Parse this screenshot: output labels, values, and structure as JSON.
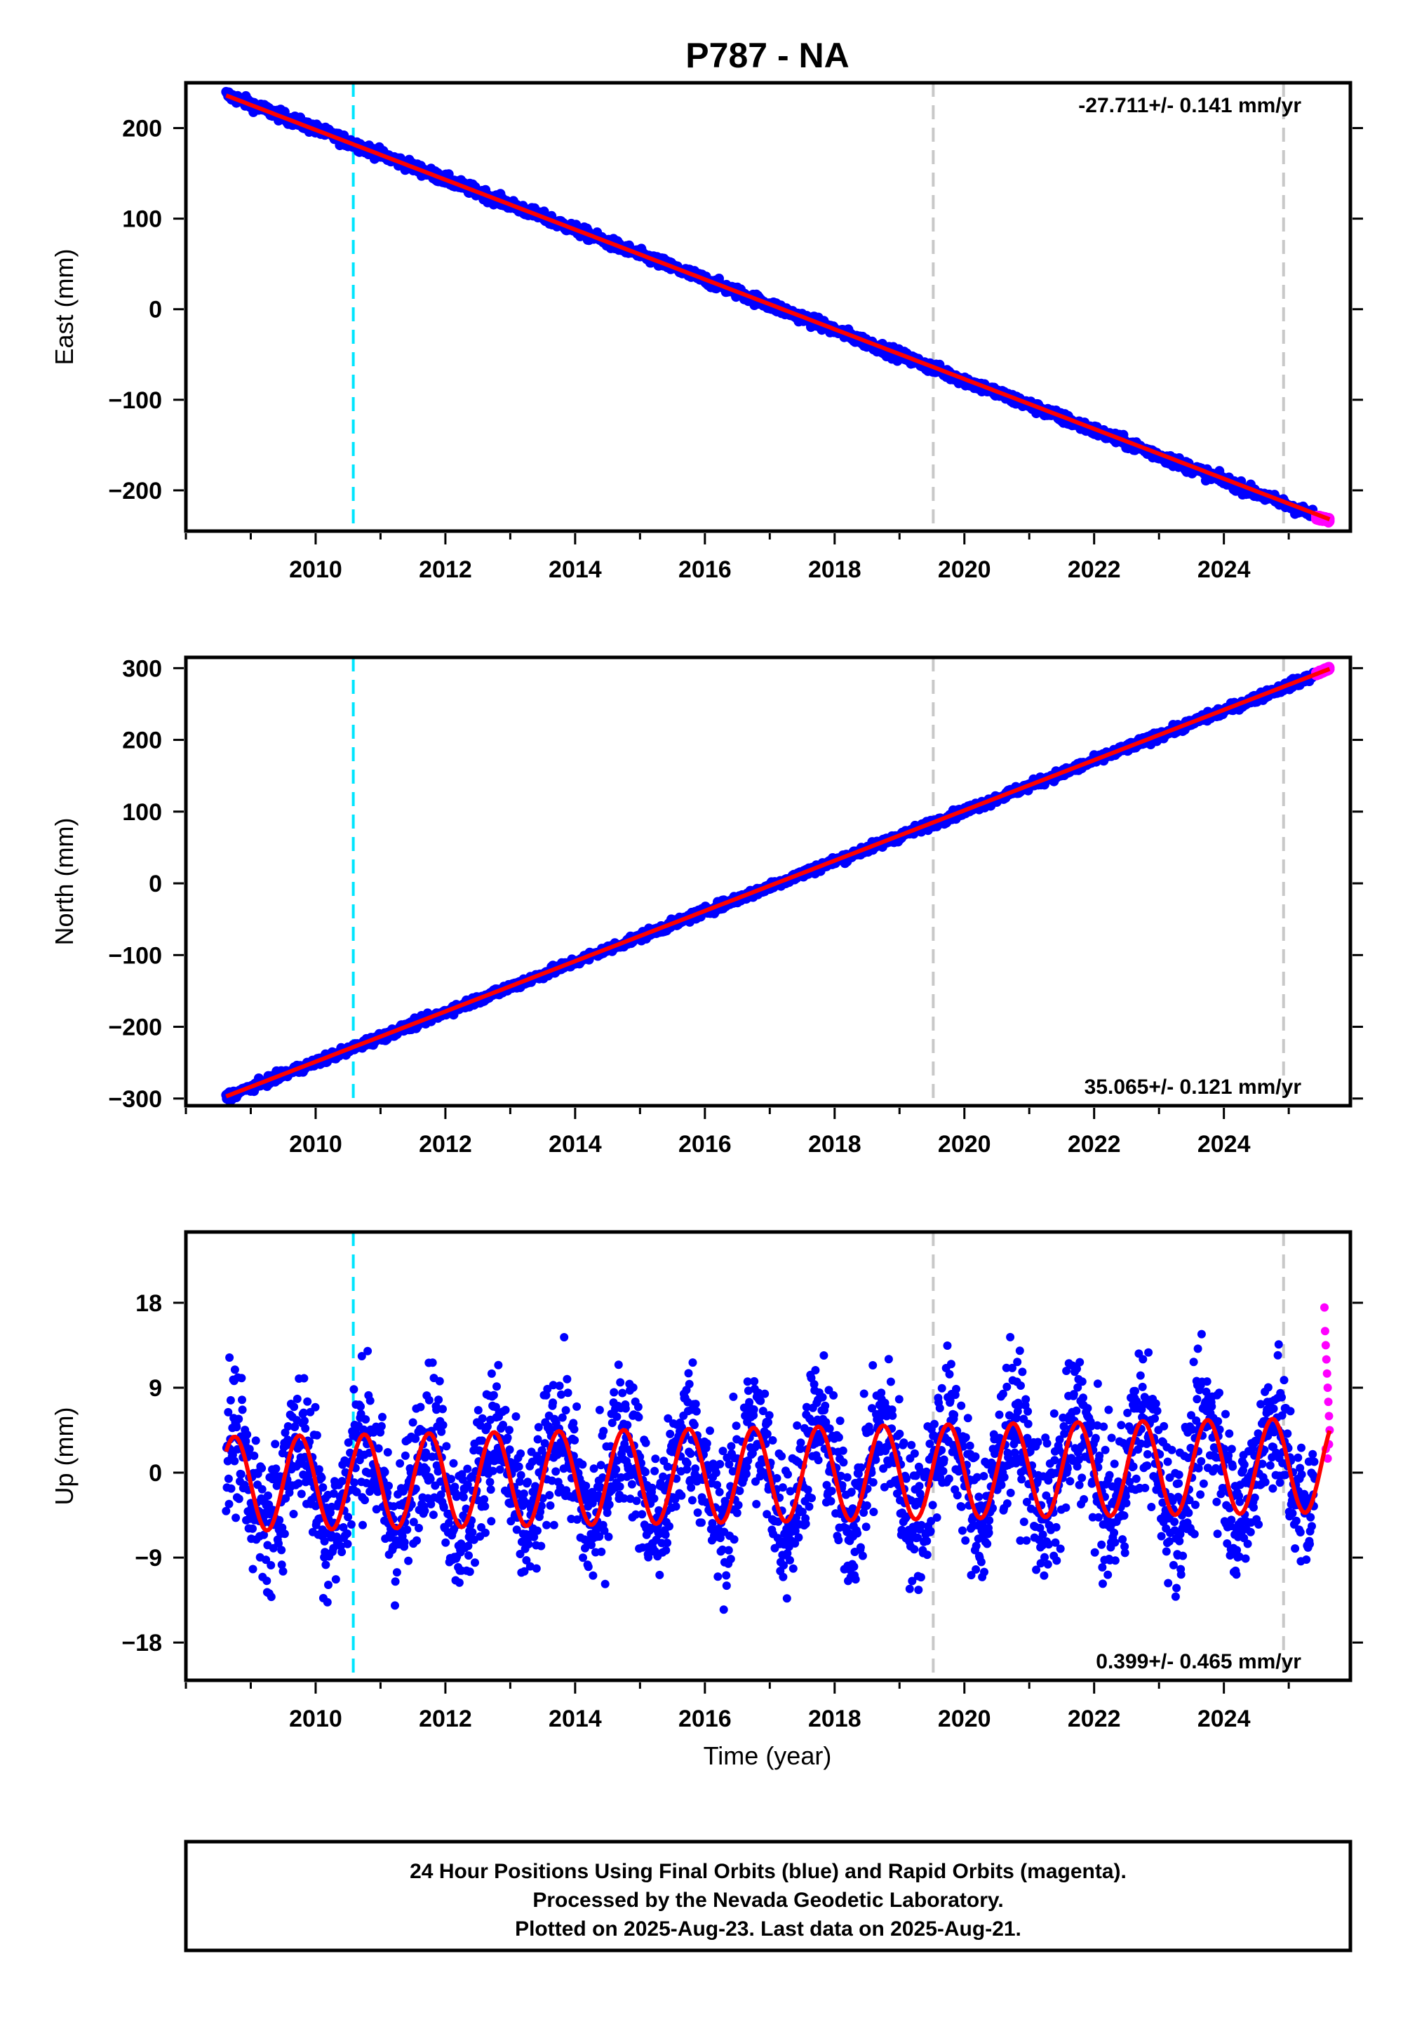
{
  "chart_data": [
    {
      "type": "scatter",
      "title": "P787 - NA",
      "ylabel": "East (mm)",
      "xlabel": "",
      "xlim": [
        2008.0,
        2025.95
      ],
      "ylim": [
        -245,
        250
      ],
      "x_ticks": [
        2010,
        2012,
        2014,
        2016,
        2018,
        2020,
        2022,
        2024
      ],
      "y_ticks": [
        -200,
        -100,
        0,
        100,
        200
      ],
      "y_tick_labels": [
        "−200",
        "−100",
        "0",
        "100",
        "200"
      ],
      "rate_label": "-27.711+/- 0.141 mm/yr",
      "grid": false,
      "series": [
        {
          "name": "Final Orbits (blue)",
          "color": "#0000ff",
          "x_start": 2008.62,
          "x_end": 2025.4,
          "y_start": 237,
          "y_end": -228,
          "scatter": 3
        },
        {
          "name": "Rapid Orbits (magenta)",
          "color": "#ff00ff",
          "x_start": 2025.42,
          "x_end": 2025.63,
          "y_start": -230,
          "y_end": -233,
          "scatter": 1
        },
        {
          "name": "Fit",
          "color": "#ff0000",
          "x_start": 2008.62,
          "x_end": 2025.63,
          "y_start": 236,
          "y_end": -232
        }
      ],
      "vlines": [
        {
          "x": 2010.58,
          "color": "#00e5ff"
        },
        {
          "x": 2019.52,
          "color": "#c8c8c8"
        },
        {
          "x": 2024.92,
          "color": "#c8c8c8"
        }
      ]
    },
    {
      "type": "scatter",
      "ylabel": "North (mm)",
      "xlabel": "",
      "xlim": [
        2008.0,
        2025.95
      ],
      "ylim": [
        -310,
        315
      ],
      "x_ticks": [
        2010,
        2012,
        2014,
        2016,
        2018,
        2020,
        2022,
        2024
      ],
      "y_ticks": [
        -300,
        -200,
        -100,
        0,
        100,
        200,
        300
      ],
      "y_tick_labels": [
        "−300",
        "−200",
        "−100",
        "0",
        "100",
        "200",
        "300"
      ],
      "rate_label": "35.065+/- 0.121 mm/yr",
      "grid": false,
      "series": [
        {
          "name": "Final Orbits (blue)",
          "color": "#0000ff",
          "x_start": 2008.62,
          "x_end": 2025.4,
          "y_start": -298,
          "y_end": 290,
          "scatter": 3
        },
        {
          "name": "Rapid Orbits (magenta)",
          "color": "#ff00ff",
          "x_start": 2025.42,
          "x_end": 2025.63,
          "y_start": 292,
          "y_end": 300,
          "scatter": 1
        },
        {
          "name": "Fit",
          "color": "#ff0000",
          "x_start": 2008.62,
          "x_end": 2025.63,
          "y_start": -297,
          "y_end": 299
        }
      ],
      "vlines": [
        {
          "x": 2010.58,
          "color": "#00e5ff"
        },
        {
          "x": 2019.52,
          "color": "#c8c8c8"
        },
        {
          "x": 2024.92,
          "color": "#c8c8c8"
        }
      ]
    },
    {
      "type": "scatter",
      "ylabel": "Up (mm)",
      "xlabel": "Time (year)",
      "xlim": [
        2008.0,
        2025.95
      ],
      "ylim": [
        -22,
        25.5
      ],
      "x_ticks": [
        2010,
        2012,
        2014,
        2016,
        2018,
        2020,
        2022,
        2024
      ],
      "y_ticks": [
        -18,
        -9,
        0,
        9,
        18
      ],
      "y_tick_labels": [
        "−18",
        "−9",
        "0",
        "9",
        "18"
      ],
      "rate_label": "0.399+/- 0.465 mm/yr",
      "grid": false,
      "series": [
        {
          "name": "Final Orbits (blue)",
          "color": "#0000ff",
          "x_start": 2008.62,
          "x_end": 2025.4,
          "trend_start": -1.2,
          "trend_end": 0.8,
          "amplitude": 5.0,
          "scatter": 3.8
        },
        {
          "name": "Rapid Orbits (magenta)",
          "color": "#ff00ff",
          "x": [
            2025.55,
            2025.56,
            2025.57,
            2025.58,
            2025.59,
            2025.6,
            2025.61,
            2025.62,
            2025.63,
            2025.57,
            2025.6,
            2025.62
          ],
          "y": [
            17.5,
            15.0,
            13.5,
            12.0,
            10.5,
            9.0,
            7.5,
            6.0,
            4.5,
            2.5,
            1.5,
            3.0
          ]
        },
        {
          "name": "Fit",
          "color": "#ff0000",
          "x_start": 2008.62,
          "x_end": 2025.63,
          "trend_start": -1.2,
          "trend_end": 0.8,
          "amplitude": 5.0
        }
      ],
      "vlines": [
        {
          "x": 2010.58,
          "color": "#00e5ff"
        },
        {
          "x": 2019.52,
          "color": "#c8c8c8"
        },
        {
          "x": 2024.92,
          "color": "#c8c8c8"
        }
      ]
    }
  ],
  "footer": {
    "line1": "24 Hour Positions Using Final Orbits (blue) and Rapid Orbits (magenta).",
    "line2": "Processed by the Nevada Geodetic Laboratory.",
    "line3": "Plotted on 2025-Aug-23. Last data on 2025-Aug-21."
  }
}
